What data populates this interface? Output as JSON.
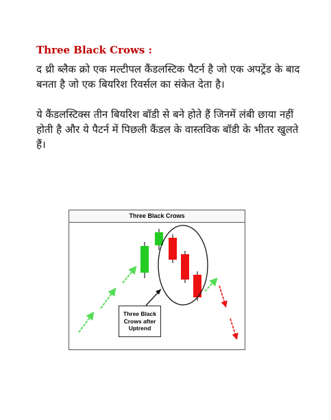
{
  "heading": "Three Black Crows :",
  "paragraph1": "द थ्री ब्लैक क्रो एक मल्टीपल कैंडलस्टिक पैटर्न है जो एक अपट्रेंड के बाद बनता है जो एक बियरिश रिवर्सल का संकेत देता है।",
  "paragraph2": "ये कैंडलस्टिक्स तीन बियरिश बॉडी से बने होते हैं जिनमें लंबी छाया नहीं होती है और ये पैटर्न में पिछली कैंडल के वास्तविक बॉडी के भीतर खुलते हैं।",
  "figure": {
    "title": "Three Black Crows",
    "callout": "Three Black\nCrows after\nUptrend",
    "colors": {
      "bullish": "#22cc22",
      "bearish": "#ee1111",
      "up_arrow": "#55dd55",
      "down_arrow": "#ee1111"
    },
    "bullish_candles": 2,
    "bearish_candles": 3
  }
}
